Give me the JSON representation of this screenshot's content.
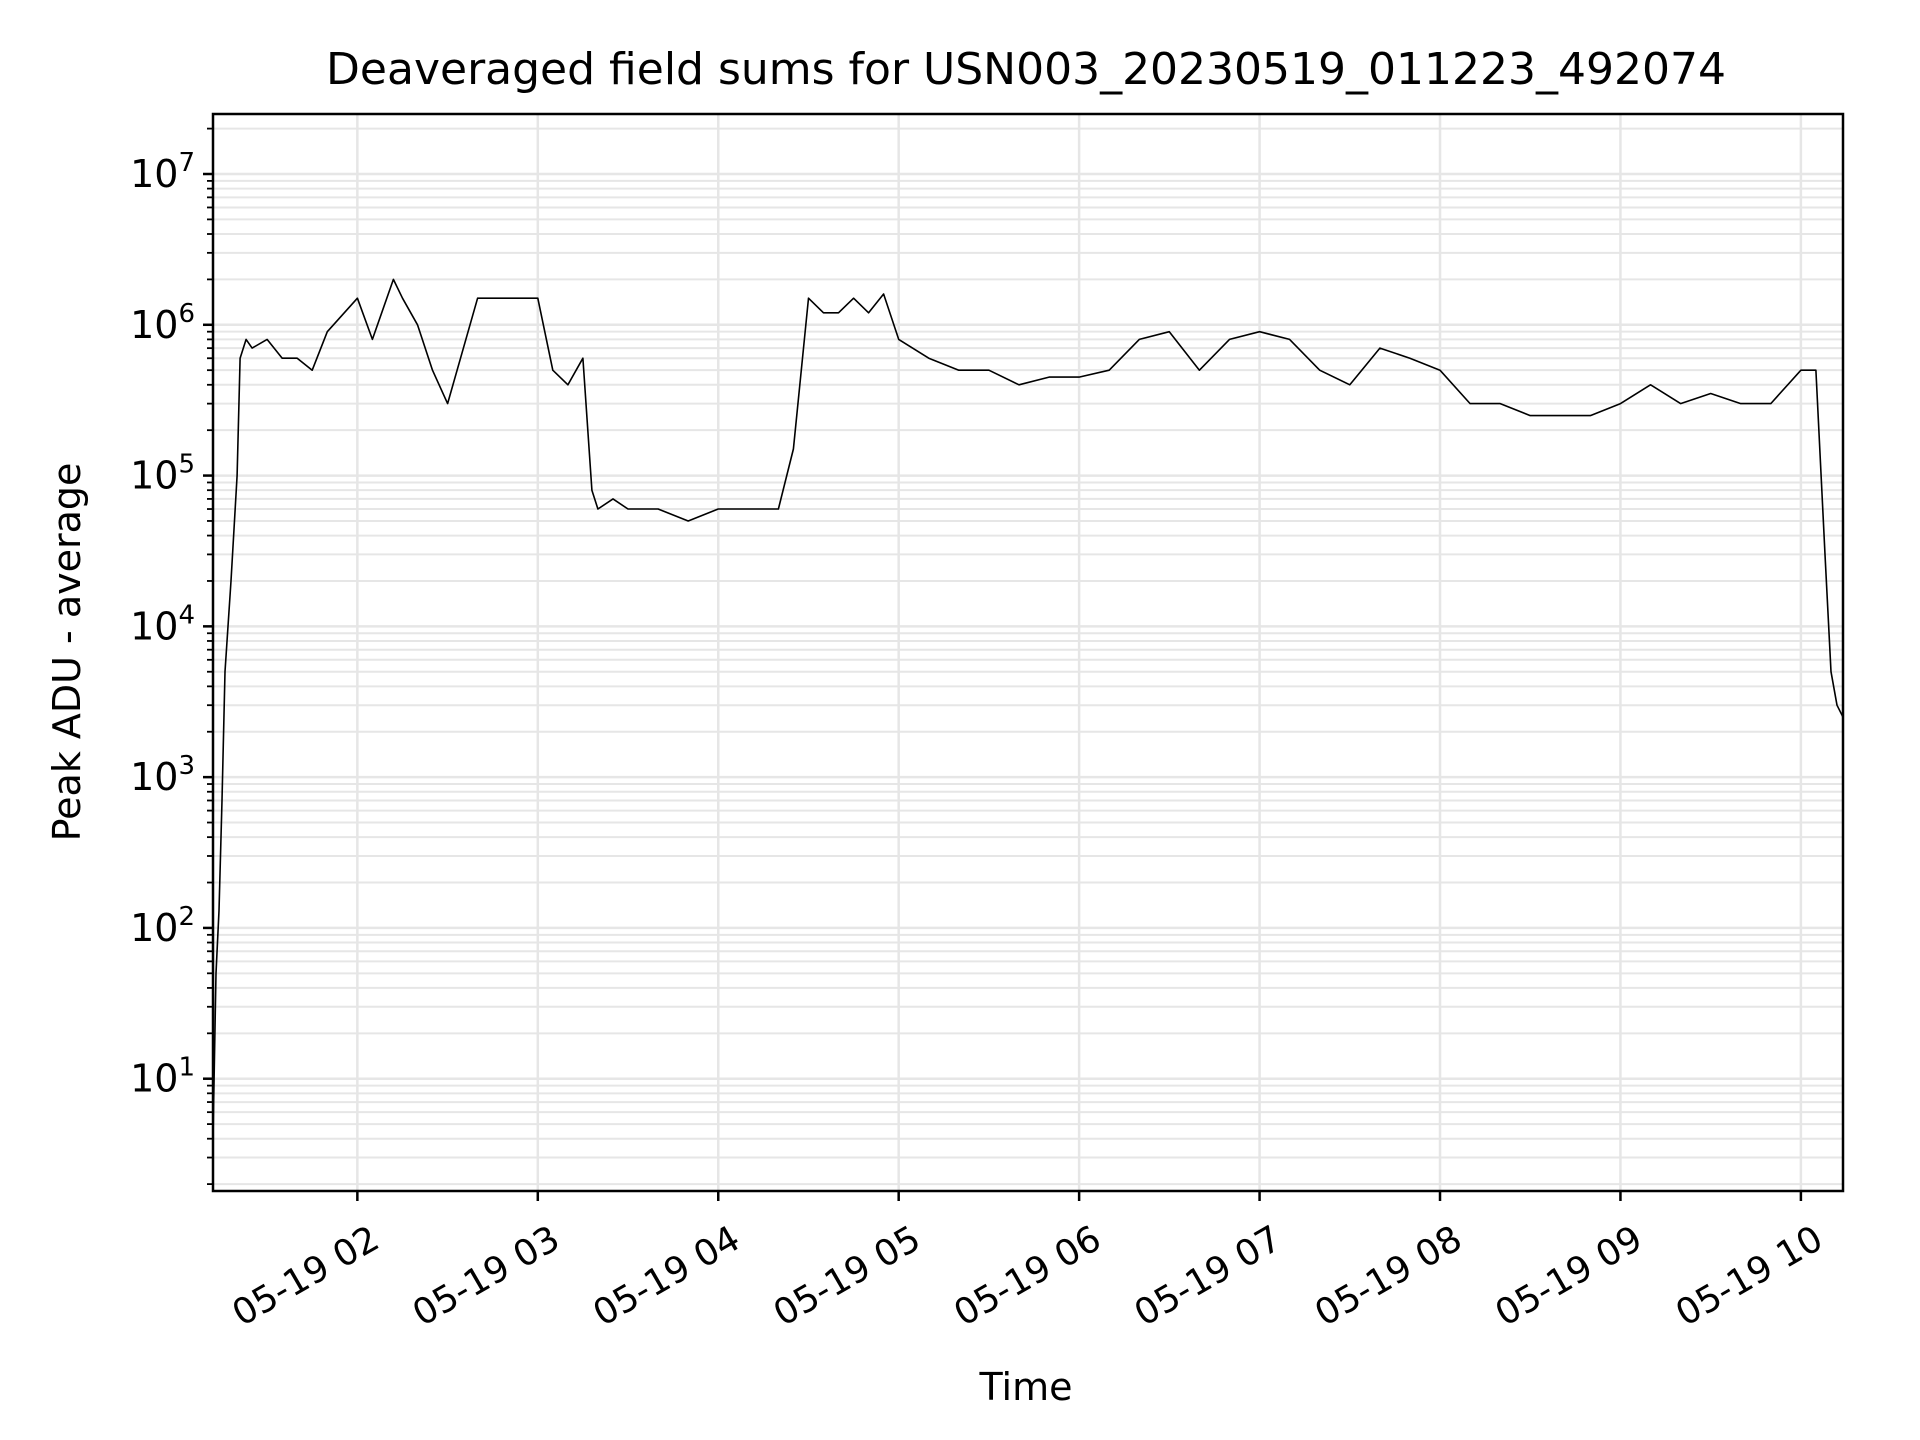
{
  "chart_data": {
    "type": "line",
    "title": "Deaveraged field sums for USN003_20230519_011223_492074",
    "xlabel": "Time",
    "ylabel": "Peak ADU - average",
    "yscale": "log",
    "xlim": [
      "2023-05-19 01:12",
      "2023-05-19 10:14"
    ],
    "ylim": [
      1.8,
      25000000
    ],
    "x_ticks": [
      "05-19 02",
      "05-19 03",
      "05-19 04",
      "05-19 05",
      "05-19 06",
      "05-19 07",
      "05-19 08",
      "05-19 09",
      "05-19 10"
    ],
    "y_ticks": [
      {
        "base": "10",
        "exp": "1",
        "value": 10
      },
      {
        "base": "10",
        "exp": "2",
        "value": 100
      },
      {
        "base": "10",
        "exp": "3",
        "value": 1000
      },
      {
        "base": "10",
        "exp": "4",
        "value": 10000
      },
      {
        "base": "10",
        "exp": "5",
        "value": 100000
      },
      {
        "base": "10",
        "exp": "6",
        "value": 1000000
      },
      {
        "base": "10",
        "exp": "7",
        "value": 10000000
      }
    ],
    "grid": true,
    "line_color": "#000000",
    "series": [
      {
        "x": [
          "01:12",
          "01:13",
          "01:14",
          "01:15",
          "01:16",
          "01:18",
          "01:20",
          "01:21",
          "01:23",
          "01:25",
          "01:30",
          "01:35",
          "01:40",
          "01:45",
          "01:50",
          "02:00",
          "02:05",
          "02:12",
          "02:15",
          "02:20",
          "02:25",
          "02:30",
          "02:40",
          "02:50",
          "03:00",
          "03:05",
          "03:10",
          "03:15",
          "03:18",
          "03:20",
          "03:25",
          "03:30",
          "03:40",
          "03:50",
          "04:00",
          "04:10",
          "04:20",
          "04:25",
          "04:30",
          "04:35",
          "04:40",
          "04:45",
          "04:50",
          "04:55",
          "05:00",
          "05:10",
          "05:20",
          "05:30",
          "05:40",
          "05:50",
          "06:00",
          "06:10",
          "06:20",
          "06:30",
          "06:40",
          "06:50",
          "07:00",
          "07:10",
          "07:20",
          "07:30",
          "07:40",
          "07:50",
          "08:00",
          "08:10",
          "08:20",
          "08:30",
          "08:40",
          "08:50",
          "09:00",
          "09:10",
          "09:20",
          "09:30",
          "09:40",
          "09:50",
          "10:00",
          "10:05",
          "10:08",
          "10:10",
          "10:12",
          "10:14"
        ],
        "y": [
          4,
          50,
          130,
          700,
          5000,
          20000,
          100000,
          600000,
          800000,
          700000,
          800000,
          600000,
          600000,
          500000,
          900000,
          1500000,
          800000,
          2000000,
          1500000,
          1000000,
          500000,
          300000,
          1500000,
          1500000,
          1500000,
          500000,
          400000,
          600000,
          80000,
          60000,
          70000,
          60000,
          60000,
          50000,
          60000,
          60000,
          60000,
          150000,
          1500000,
          1200000,
          1200000,
          1500000,
          1200000,
          1600000,
          800000,
          600000,
          500000,
          500000,
          400000,
          450000,
          450000,
          500000,
          800000,
          900000,
          500000,
          800000,
          900000,
          800000,
          500000,
          400000,
          700000,
          600000,
          500000,
          300000,
          300000,
          250000,
          250000,
          250000,
          300000,
          400000,
          300000,
          350000,
          300000,
          300000,
          500000,
          500000,
          30000,
          5000,
          3000,
          2500
        ]
      }
    ]
  }
}
